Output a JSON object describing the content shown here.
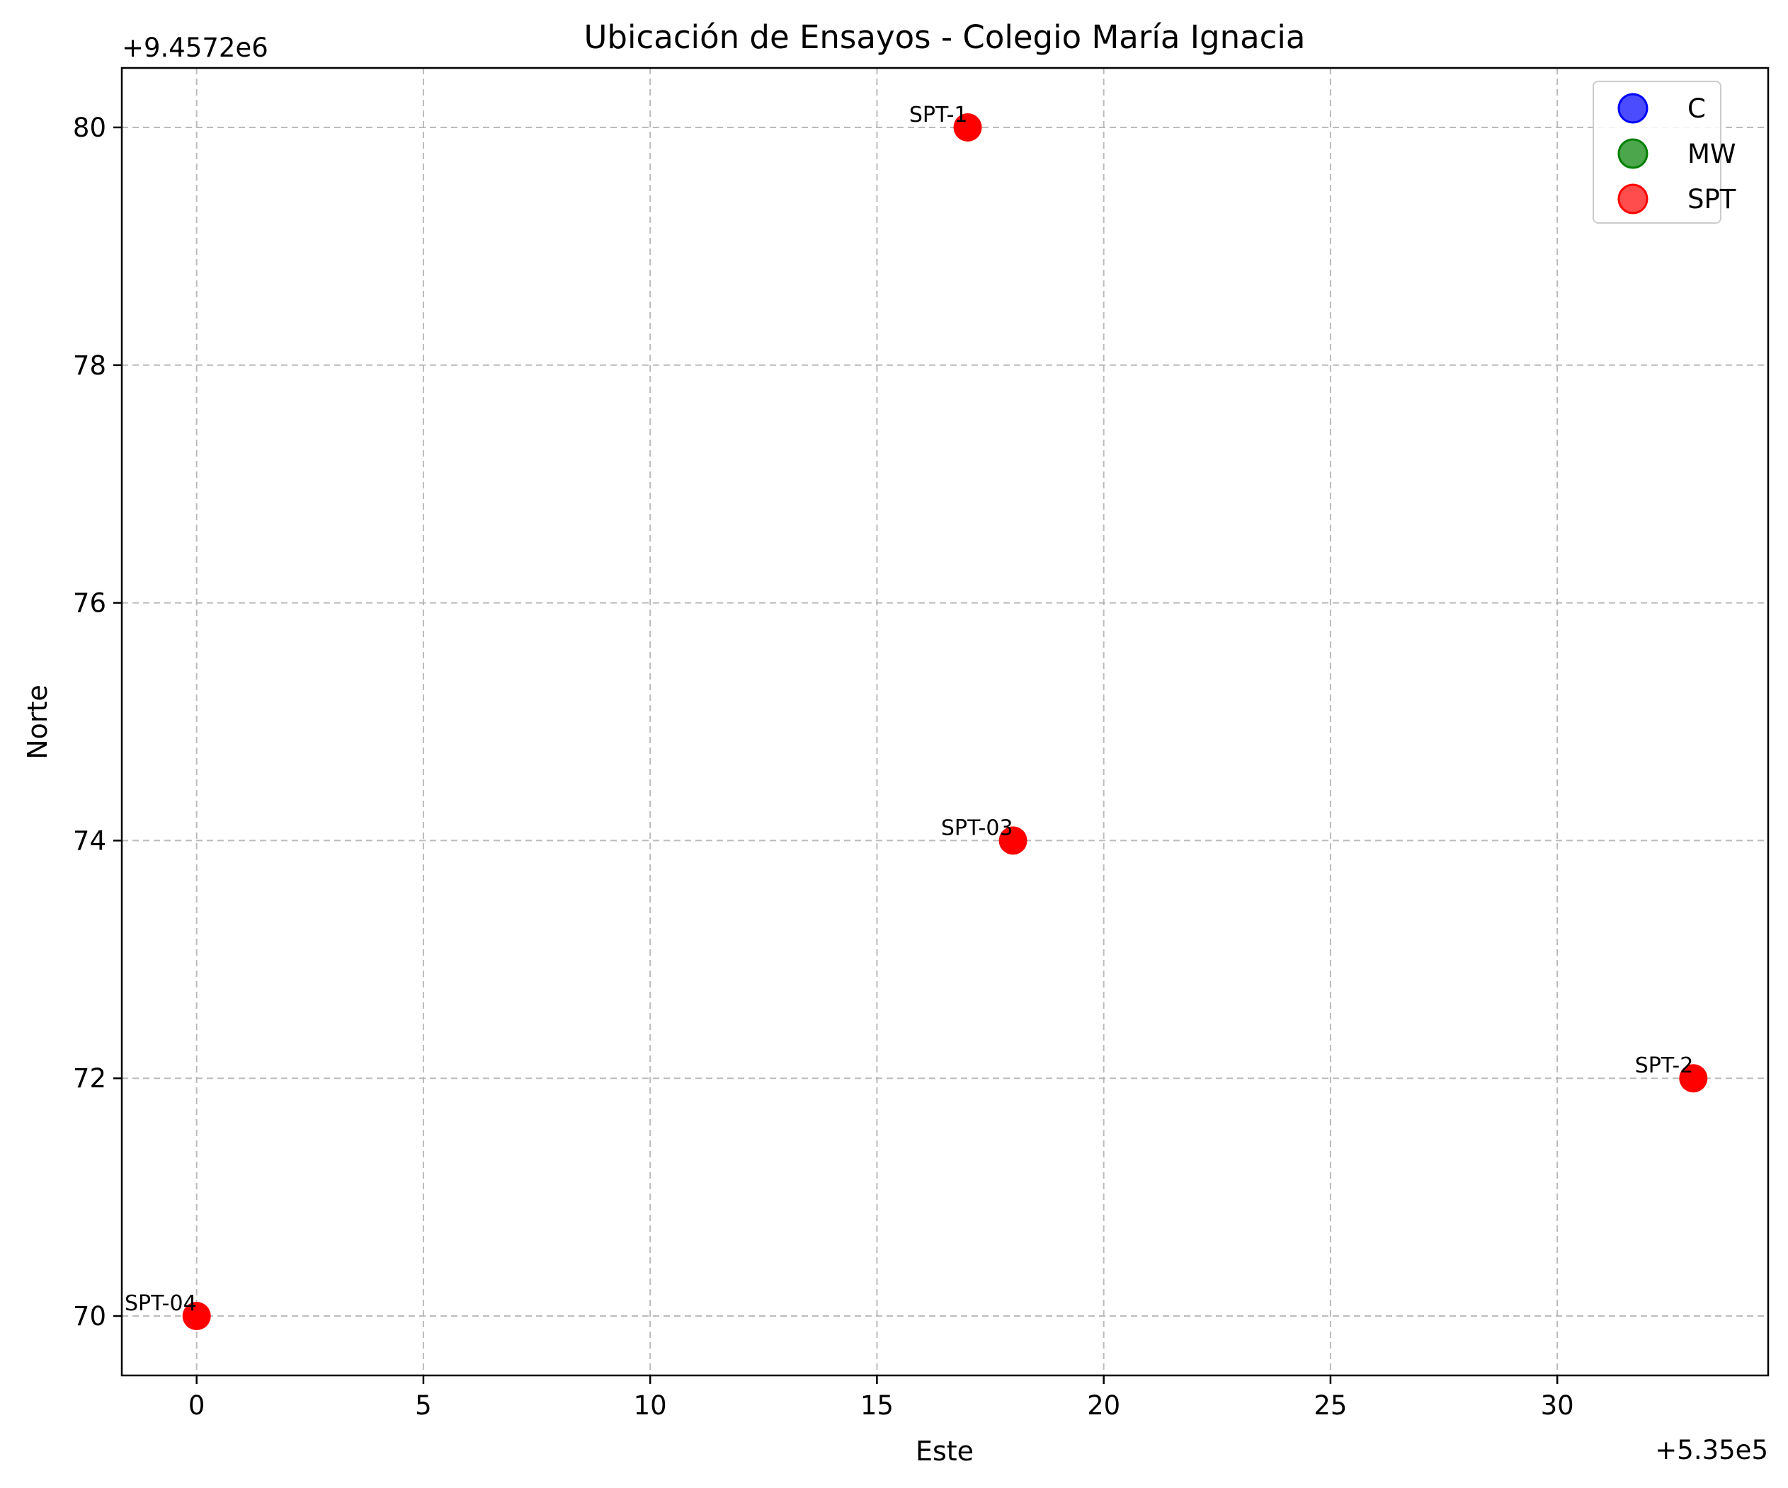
{
  "chart_data": {
    "type": "scatter",
    "title": "Ubicación de Ensayos - Colegio María Ignacia",
    "xlabel": "Este",
    "ylabel": "Norte",
    "x_offset_label": "+5.35e5",
    "y_offset_label": "+9.4572e6",
    "xlim": [
      -1.65,
      34.65
    ],
    "ylim": [
      69.5,
      80.5
    ],
    "x_ticks": [
      0,
      5,
      10,
      15,
      20,
      25,
      30
    ],
    "x_tick_labels": [
      "0",
      "5",
      "10",
      "15",
      "20",
      "25",
      "30"
    ],
    "y_ticks": [
      70,
      72,
      74,
      76,
      78,
      80
    ],
    "y_tick_labels": [
      "70",
      "72",
      "74",
      "76",
      "78",
      "80"
    ],
    "grid": true,
    "legend_position": "top-right",
    "series": [
      {
        "name": "C",
        "color": "#0000ff",
        "points": []
      },
      {
        "name": "MW",
        "color": "#008000",
        "points": []
      },
      {
        "name": "SPT",
        "color": "#ff0000",
        "points": [
          {
            "x": 17,
            "y": 80,
            "label": "SPT-1"
          },
          {
            "x": 33,
            "y": 72,
            "label": "SPT-2"
          },
          {
            "x": 18,
            "y": 74,
            "label": "SPT-03"
          },
          {
            "x": 0,
            "y": 70,
            "label": "SPT-04"
          }
        ]
      }
    ]
  }
}
